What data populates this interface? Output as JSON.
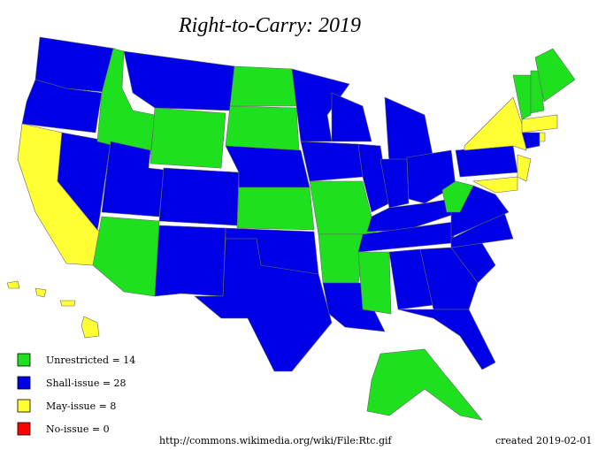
{
  "title": "Right-to-Carry: 2019",
  "legend": [
    {
      "label": "Unrestricted = 14",
      "color": "#1fe01f"
    },
    {
      "label": "Shall-issue = 28",
      "color": "#0000e6"
    },
    {
      "label": "May-issue = 8",
      "color": "#ffff33"
    },
    {
      "label": "No-issue = 0",
      "color": "#ff0000"
    }
  ],
  "source": "http://commons.wikimedia.org/wiki/File:Rtc.gif",
  "created": "created 2019-02-01"
}
